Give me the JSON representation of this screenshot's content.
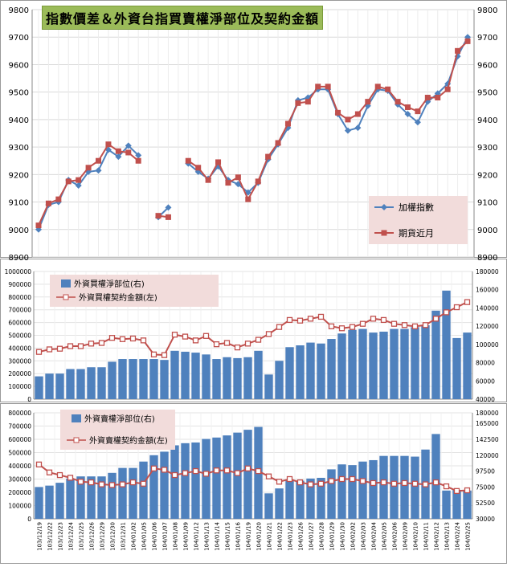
{
  "title": "指數價差＆外資台指買賣權淨部位及契約金額",
  "chart_data": [
    {
      "type": "line",
      "name": "index-vs-futures",
      "ylim": [
        8900,
        9800
      ],
      "yticks": [
        8900,
        9000,
        9100,
        9200,
        9300,
        9400,
        9500,
        9600,
        9700,
        9800
      ],
      "grid": true,
      "legend_position": "right",
      "series": [
        {
          "name": "加權指數",
          "color": "#4f81bd",
          "values": [
            9000,
            9090,
            9100,
            9180,
            9160,
            9210,
            9215,
            9290,
            9265,
            9305,
            9270,
            null,
            9045,
            9080,
            null,
            9240,
            9210,
            9185,
            9230,
            9180,
            9165,
            9135,
            9170,
            9255,
            9310,
            9370,
            9470,
            9480,
            9510,
            9510,
            9420,
            9360,
            9370,
            9450,
            9510,
            9505,
            9455,
            9420,
            9390,
            9465,
            9495,
            9530,
            9630,
            9700
          ]
        },
        {
          "name": "期貨近月",
          "color": "#c0504d",
          "values": [
            9015,
            9095,
            9110,
            9175,
            9180,
            9225,
            9250,
            9310,
            9285,
            9280,
            9250,
            null,
            9050,
            9045,
            null,
            9250,
            9225,
            9180,
            9245,
            9170,
            9190,
            9110,
            9175,
            9265,
            9315,
            9385,
            9460,
            9465,
            9520,
            9520,
            9425,
            9400,
            9420,
            9465,
            9520,
            9510,
            9465,
            9445,
            9430,
            9480,
            9480,
            9510,
            9650,
            9685
          ]
        }
      ]
    },
    {
      "type": "bar+line",
      "name": "call-positions",
      "ylim_left": [
        0,
        1000000
      ],
      "yticks_left": [
        0,
        100000,
        200000,
        300000,
        400000,
        500000,
        600000,
        700000,
        800000,
        900000,
        1000000
      ],
      "ylim_right": [
        40000,
        180000
      ],
      "yticks_right": [
        40000,
        60000,
        80000,
        100000,
        120000,
        140000,
        160000,
        180000
      ],
      "series": [
        {
          "name": "外資買權淨部位(右)",
          "type": "bar",
          "axis": "right",
          "color": "#4f81bd",
          "values": [
            65000,
            68000,
            68000,
            73000,
            73000,
            75000,
            75000,
            81000,
            84000,
            84000,
            84000,
            84000,
            83000,
            93000,
            92000,
            91000,
            89000,
            84000,
            86000,
            85000,
            86000,
            93000,
            67000,
            82000,
            97000,
            99000,
            102000,
            101000,
            106000,
            112000,
            116000,
            117000,
            113000,
            114000,
            117000,
            117000,
            119000,
            121000,
            137000,
            159000,
            107000,
            113000
          ]
        },
        {
          "name": "外資買權契約金額(左)",
          "type": "line",
          "axis": "left",
          "color": "#c0504d",
          "values": [
            370000,
            390000,
            395000,
            415000,
            415000,
            435000,
            440000,
            480000,
            470000,
            475000,
            460000,
            350000,
            345000,
            505000,
            490000,
            460000,
            495000,
            430000,
            440000,
            405000,
            435000,
            465000,
            510000,
            565000,
            620000,
            615000,
            630000,
            645000,
            570000,
            555000,
            565000,
            590000,
            630000,
            620000,
            590000,
            580000,
            570000,
            580000,
            630000,
            680000,
            720000,
            760000
          ]
        }
      ]
    },
    {
      "type": "bar+line",
      "name": "put-positions",
      "ylim_left": [
        0,
        800000
      ],
      "yticks_left": [
        0,
        100000,
        200000,
        300000,
        400000,
        500000,
        600000,
        700000,
        800000
      ],
      "ylim_right": [
        30000,
        180000
      ],
      "yticks_right": [
        30000,
        52500,
        75000,
        97500,
        120000,
        142500,
        165000,
        180000
      ],
      "series": [
        {
          "name": "外資賣權淨部位(右)",
          "type": "bar",
          "axis": "right",
          "color": "#4f81bd",
          "values": [
            75000,
            77000,
            81000,
            87000,
            90000,
            90000,
            90000,
            95000,
            102000,
            102000,
            111000,
            120000,
            125000,
            134000,
            137000,
            138000,
            143000,
            145000,
            148000,
            152000,
            156000,
            160000,
            66000,
            73000,
            84000,
            84000,
            87000,
            88000,
            100000,
            107000,
            106000,
            111000,
            113000,
            119000,
            119000,
            119000,
            118000,
            128000,
            150000,
            70000,
            71000,
            70000
          ]
        },
        {
          "name": "外資賣權契約金額(左)",
          "type": "line",
          "axis": "left",
          "color": "#c0504d",
          "values": [
            410000,
            350000,
            330000,
            310000,
            280000,
            275000,
            260000,
            255000,
            260000,
            275000,
            265000,
            380000,
            370000,
            330000,
            345000,
            360000,
            340000,
            365000,
            365000,
            345000,
            380000,
            360000,
            320000,
            280000,
            300000,
            275000,
            260000,
            265000,
            285000,
            300000,
            300000,
            285000,
            270000,
            275000,
            265000,
            270000,
            265000,
            260000,
            275000,
            245000,
            210000,
            215000
          ]
        }
      ],
      "x_labels": [
        "103/12/19",
        "103/12/22",
        "103/12/23",
        "103/12/24",
        "103/12/25",
        "103/12/26",
        "103/12/29",
        "103/12/30",
        "103/12/31",
        "104/01/02",
        "104/01/05",
        "104/01/06",
        "104/01/07",
        "104/01/08",
        "104/01/09",
        "104/01/12",
        "104/01/13",
        "104/01/14",
        "104/01/15",
        "104/01/16",
        "104/01/19",
        "104/01/20",
        "104/01/21",
        "104/01/22",
        "104/01/23",
        "104/01/26",
        "104/01/27",
        "104/01/28",
        "104/01/29",
        "104/01/30",
        "104/02/02",
        "104/02/03",
        "104/02/04",
        "104/02/05",
        "104/02/06",
        "104/02/09",
        "104/02/10",
        "104/02/11",
        "104/02/12",
        "104/02/13",
        "104/02/24",
        "104/02/25"
      ]
    }
  ]
}
